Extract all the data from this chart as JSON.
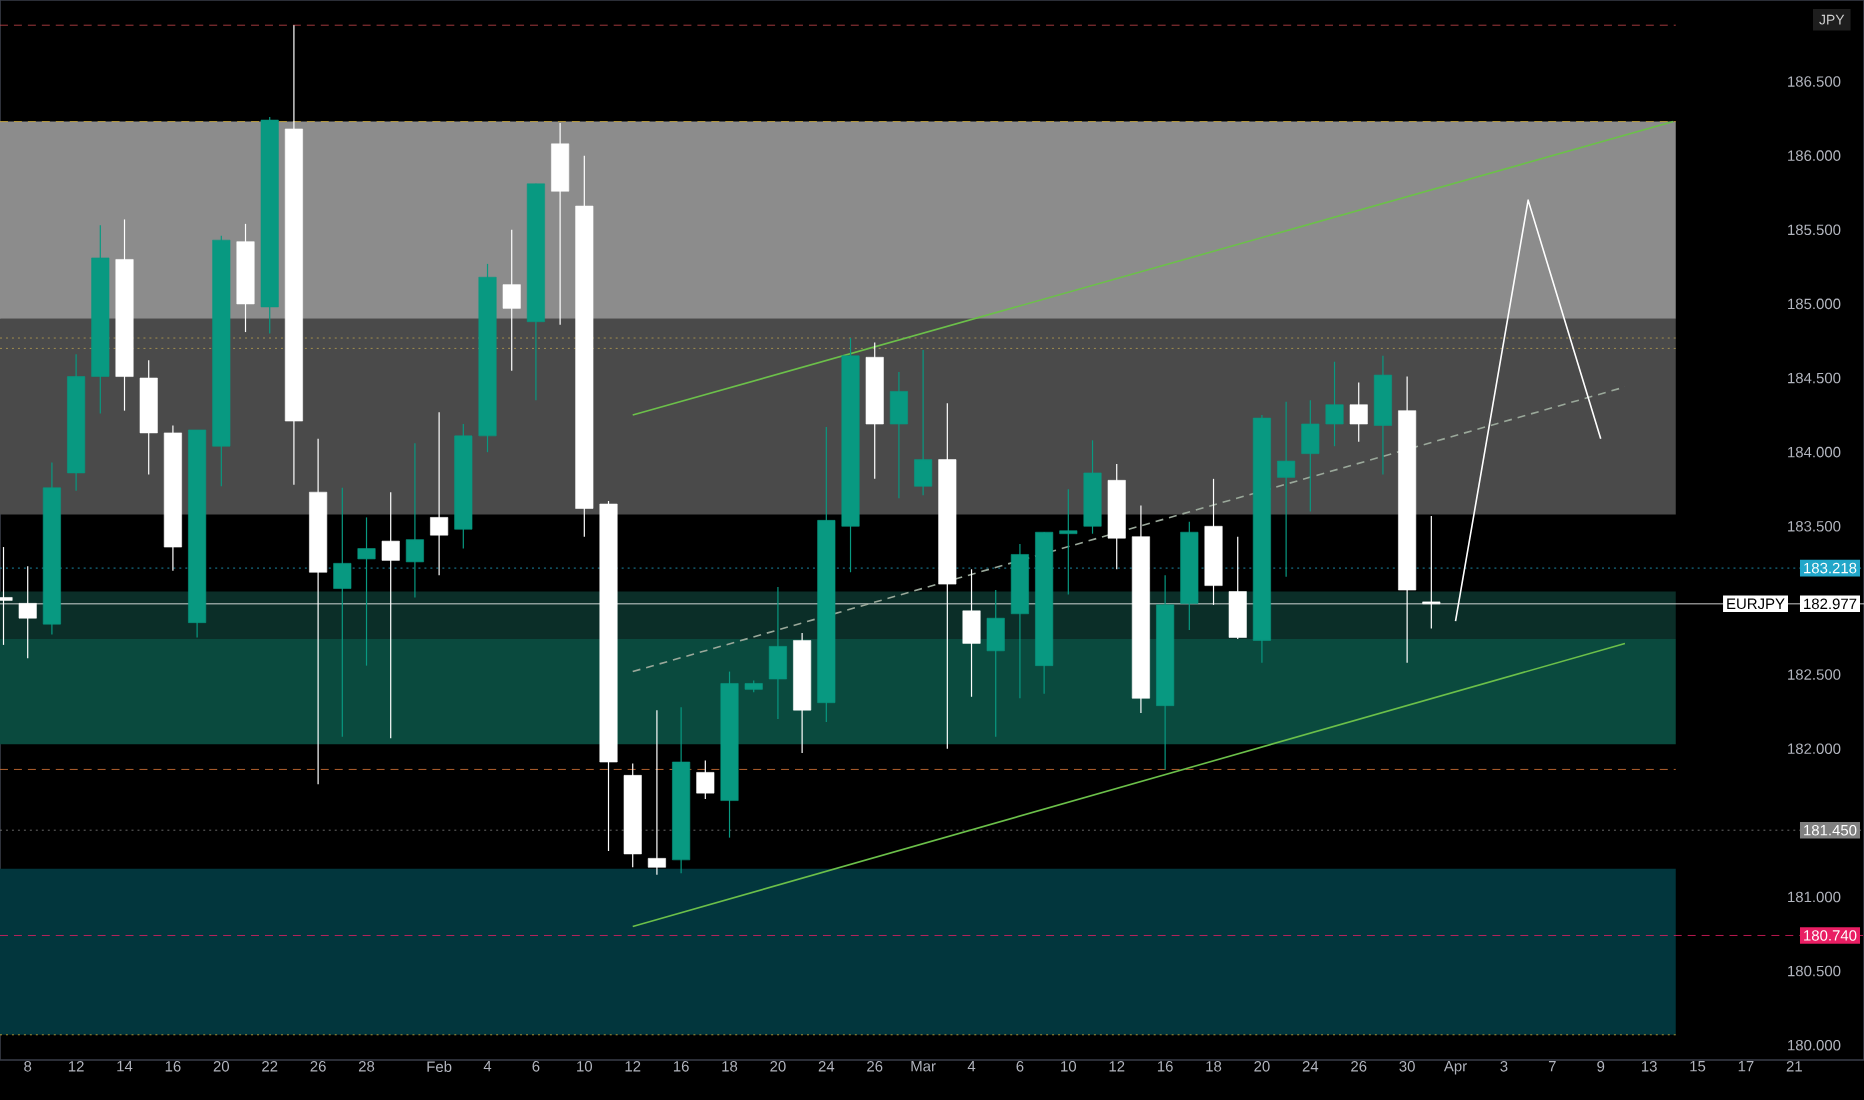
{
  "chart_data": {
    "type": "candlestick",
    "ylabel": "JPY",
    "categories": [
      null,
      "8",
      null,
      "12",
      null,
      "14",
      null,
      "16",
      null,
      "20",
      null,
      "22",
      null,
      "26",
      null,
      "28",
      null,
      null,
      "Feb",
      null,
      "4",
      null,
      "6",
      null,
      "10",
      null,
      "12",
      null,
      "16",
      null,
      "18",
      null,
      "20",
      null,
      "24",
      null,
      "26",
      null,
      "Mar",
      null,
      "4",
      null,
      "6",
      null,
      "10",
      null,
      "12",
      null,
      "16",
      null,
      "18",
      null,
      "20",
      null,
      "24",
      null,
      "26",
      null,
      "30",
      null,
      "Apr",
      null,
      "3",
      null,
      "7",
      null,
      "9",
      null,
      "13",
      null,
      "15",
      null,
      "17",
      null,
      "21"
    ],
    "ohlc": [
      [
        183.02,
        183.36,
        182.7,
        183.0
      ],
      [
        182.98,
        183.23,
        182.61,
        182.88
      ],
      [
        182.84,
        183.93,
        182.77,
        183.76
      ],
      [
        183.86,
        184.66,
        183.74,
        184.51
      ],
      [
        184.51,
        185.53,
        184.26,
        185.31
      ],
      [
        185.3,
        185.57,
        184.28,
        184.51
      ],
      [
        184.5,
        184.62,
        183.85,
        184.13
      ],
      [
        184.13,
        184.18,
        183.2,
        183.36
      ],
      [
        182.85,
        184.15,
        182.75,
        184.15
      ],
      [
        184.04,
        185.46,
        183.77,
        185.43
      ],
      [
        185.42,
        185.54,
        184.81,
        185.0
      ],
      [
        184.98,
        186.26,
        184.8,
        186.24
      ],
      [
        186.18,
        186.88,
        183.78,
        184.21
      ],
      [
        183.73,
        184.09,
        181.76,
        183.19
      ],
      [
        183.08,
        183.76,
        182.08,
        183.25
      ],
      [
        183.28,
        183.56,
        182.56,
        183.35
      ],
      [
        183.4,
        183.73,
        182.07,
        183.27
      ],
      [
        183.26,
        184.06,
        183.02,
        183.41
      ],
      [
        183.56,
        184.27,
        183.17,
        183.44
      ],
      [
        183.48,
        184.19,
        183.35,
        184.11
      ],
      [
        184.11,
        185.27,
        184.0,
        185.18
      ],
      [
        185.13,
        185.5,
        184.55,
        184.97
      ],
      [
        184.88,
        185.81,
        184.35,
        185.81
      ],
      [
        186.08,
        186.22,
        184.86,
        185.76
      ],
      [
        185.66,
        186.0,
        183.43,
        183.62
      ],
      [
        183.65,
        183.67,
        181.31,
        181.91
      ],
      [
        181.82,
        181.9,
        181.2,
        181.29
      ],
      [
        181.26,
        182.26,
        181.15,
        181.2
      ],
      [
        181.25,
        182.28,
        181.16,
        181.91
      ],
      [
        181.84,
        181.92,
        181.66,
        181.7
      ],
      [
        181.65,
        182.52,
        181.4,
        182.44
      ],
      [
        182.4,
        182.46,
        182.38,
        182.44
      ],
      [
        182.47,
        183.09,
        182.2,
        182.69
      ],
      [
        182.73,
        182.78,
        181.97,
        182.26
      ],
      [
        182.31,
        184.17,
        182.18,
        183.54
      ],
      [
        183.5,
        184.77,
        183.19,
        184.65
      ],
      [
        184.64,
        184.74,
        183.82,
        184.19
      ],
      [
        184.19,
        184.54,
        183.69,
        184.41
      ],
      [
        183.77,
        184.69,
        183.71,
        183.95
      ],
      [
        183.95,
        184.33,
        182.0,
        183.11
      ],
      [
        182.93,
        183.21,
        182.35,
        182.71
      ],
      [
        182.66,
        183.07,
        182.08,
        182.88
      ],
      [
        182.91,
        183.38,
        182.34,
        183.31
      ],
      [
        182.56,
        183.46,
        182.37,
        183.46
      ],
      [
        183.45,
        183.75,
        183.04,
        183.47
      ],
      [
        183.5,
        184.08,
        183.45,
        183.86
      ],
      [
        183.81,
        183.92,
        183.21,
        183.42
      ],
      [
        183.43,
        183.64,
        182.24,
        182.34
      ],
      [
        182.29,
        183.17,
        181.86,
        182.97
      ],
      [
        182.98,
        183.53,
        182.8,
        183.46
      ],
      [
        183.5,
        183.82,
        182.97,
        183.1
      ],
      [
        183.06,
        183.43,
        182.74,
        182.75
      ],
      [
        182.73,
        184.25,
        182.58,
        184.23
      ],
      [
        183.83,
        184.34,
        183.16,
        183.94
      ],
      [
        183.99,
        184.35,
        183.6,
        184.19
      ],
      [
        184.19,
        184.61,
        184.04,
        184.32
      ],
      [
        184.32,
        184.47,
        184.07,
        184.19
      ],
      [
        184.18,
        184.65,
        183.85,
        184.52
      ],
      [
        184.28,
        184.51,
        182.58,
        183.07
      ],
      [
        182.99,
        183.57,
        182.81,
        182.977
      ],
      null,
      null,
      null,
      null,
      null,
      null,
      null,
      null,
      null,
      null,
      null,
      null,
      null,
      null,
      null
    ],
    "colors": [
      "#ffffff",
      "#ffffff",
      "#089981",
      "#089981",
      "#089981",
      "#ffffff",
      "#ffffff",
      "#ffffff",
      "#089981",
      "#089981",
      "#ffffff",
      "#089981",
      "#ffffff",
      "#ffffff",
      "#089981",
      "#089981",
      "#ffffff",
      "#089981",
      "#ffffff",
      "#089981",
      "#089981",
      "#ffffff",
      "#089981",
      "#ffffff",
      "#ffffff",
      "#ffffff",
      "#ffffff",
      "#ffffff",
      "#089981",
      "#ffffff",
      "#089981",
      "#089981",
      "#089981",
      "#ffffff",
      "#089981",
      "#089981",
      "#ffffff",
      "#089981",
      "#089981",
      "#ffffff",
      "#ffffff",
      "#089981",
      "#089981",
      "#089981",
      "#089981",
      "#089981",
      "#ffffff",
      "#ffffff",
      "#089981",
      "#089981",
      "#ffffff",
      "#ffffff",
      "#089981",
      "#089981",
      "#089981",
      "#089981",
      "#ffffff",
      "#089981",
      "#ffffff",
      "#ffffff",
      null,
      null,
      null,
      null,
      null,
      null,
      null,
      null,
      null,
      null,
      null,
      null,
      null,
      null,
      null
    ],
    "series": [
      {
        "type": "line",
        "color": "#6cc04a",
        "line_style": "solid",
        "values": [
          null,
          null,
          null,
          null,
          null,
          null,
          null,
          null,
          null,
          null,
          null,
          null,
          null,
          null,
          null,
          null,
          null,
          null,
          null,
          null,
          null,
          null,
          null,
          null,
          null,
          null,
          184.25,
          null,
          null,
          null,
          null,
          null,
          null,
          null,
          null,
          null,
          null,
          null,
          null,
          null,
          null,
          null,
          null,
          null,
          null,
          null,
          null,
          null,
          null,
          null,
          null,
          null,
          null,
          null,
          null,
          null,
          null,
          null,
          null,
          null,
          null,
          null,
          null,
          null,
          null,
          null,
          null,
          null,
          null,
          186.23,
          null,
          null,
          null,
          null,
          null
        ]
      },
      {
        "type": "line",
        "color": "#6cc04a",
        "line_style": "solid",
        "values": [
          null,
          null,
          null,
          null,
          null,
          null,
          null,
          null,
          null,
          null,
          null,
          null,
          null,
          null,
          null,
          null,
          null,
          null,
          null,
          null,
          null,
          null,
          null,
          null,
          null,
          null,
          180.8,
          null,
          null,
          null,
          null,
          null,
          null,
          null,
          null,
          null,
          null,
          null,
          null,
          null,
          null,
          null,
          null,
          null,
          null,
          null,
          null,
          null,
          null,
          null,
          null,
          null,
          null,
          null,
          null,
          null,
          null,
          null,
          null,
          null,
          null,
          null,
          null,
          null,
          null,
          null,
          null,
          182.71,
          null,
          null,
          null,
          null,
          null,
          null,
          null
        ]
      },
      {
        "type": "line",
        "color": "#9aa89a",
        "line_style": "dashed",
        "values": [
          null,
          null,
          null,
          null,
          null,
          null,
          null,
          null,
          null,
          null,
          null,
          null,
          null,
          null,
          null,
          null,
          null,
          null,
          null,
          null,
          null,
          null,
          null,
          null,
          null,
          null,
          182.52,
          null,
          null,
          null,
          null,
          null,
          null,
          null,
          null,
          null,
          null,
          null,
          null,
          null,
          null,
          null,
          null,
          null,
          null,
          null,
          null,
          null,
          null,
          null,
          null,
          null,
          null,
          null,
          null,
          null,
          null,
          null,
          null,
          null,
          null,
          null,
          null,
          null,
          null,
          null,
          null,
          184.44,
          null,
          null,
          null,
          null,
          null,
          null,
          null
        ]
      },
      {
        "type": "line",
        "color": "#ffffff",
        "line_style": "solid",
        "values": [
          null,
          null,
          null,
          null,
          null,
          null,
          null,
          null,
          null,
          null,
          null,
          null,
          null,
          null,
          null,
          null,
          null,
          null,
          null,
          null,
          null,
          null,
          null,
          null,
          null,
          null,
          null,
          null,
          null,
          null,
          null,
          null,
          null,
          null,
          null,
          null,
          null,
          null,
          null,
          null,
          null,
          null,
          null,
          null,
          null,
          null,
          null,
          null,
          null,
          null,
          null,
          null,
          null,
          null,
          null,
          null,
          null,
          null,
          null,
          null,
          182.86,
          null,
          null,
          185.7,
          null,
          null,
          184.09,
          null,
          null,
          null,
          null,
          null,
          null,
          null,
          null
        ]
      }
    ],
    "bands": [
      {
        "axis": "y",
        "from": 180.07,
        "to": 181.19,
        "color": "#02363d"
      },
      {
        "axis": "y",
        "from": 182.03,
        "to": 182.74,
        "color": "#0a4a3e"
      },
      {
        "axis": "y",
        "from": 182.74,
        "to": 183.06,
        "color": "#0b2e28"
      },
      {
        "axis": "y",
        "from": 183.58,
        "to": 184.9,
        "color": "#4a4a4a"
      },
      {
        "axis": "y",
        "from": 184.9,
        "to": 186.23,
        "color": "#8c8c8c"
      }
    ],
    "ref_lines": [
      {
        "axis": "y",
        "value": 186.88,
        "color": "#c8464b",
        "line_style": "dashed"
      },
      {
        "axis": "y",
        "value": 186.23,
        "color": "#d4b03a",
        "line_style": "dashed"
      },
      {
        "axis": "y",
        "value": 184.77,
        "color": "#b8a050",
        "line_style": "dotted"
      },
      {
        "axis": "y",
        "value": 184.7,
        "color": "#b8a050",
        "line_style": "dotted"
      },
      {
        "axis": "y",
        "value": 181.86,
        "color": "#e07a3a",
        "line_style": "dashed"
      },
      {
        "axis": "y",
        "value": 180.07,
        "color": "#d4b03a",
        "line_style": "dotted"
      },
      {
        "axis": "y",
        "value": 183.218,
        "label": "183.218",
        "color": "#22a7c9",
        "line_style": "dotted"
      },
      {
        "axis": "y",
        "value": 182.977,
        "label": "182.977",
        "color": "#ffffff",
        "line_style": "solid"
      },
      {
        "axis": "y",
        "value": 181.45,
        "label": "181.450",
        "color": "#808080",
        "line_style": "dotted"
      },
      {
        "axis": "y",
        "value": 180.74,
        "label": "180.740",
        "color": "#e91e63",
        "line_style": "dashed"
      }
    ],
    "annotations": [
      "EURJPY"
    ],
    "ylim": [
      179.9,
      187.05
    ],
    "yticks": [
      {
        "value": 180,
        "label": "180.000"
      },
      {
        "value": 180.5,
        "label": "180.500"
      },
      {
        "value": 181,
        "label": "181.000"
      },
      {
        "value": 182,
        "label": "182.000"
      },
      {
        "value": 182.5,
        "label": "182.500"
      },
      {
        "value": 183.5,
        "label": "183.500"
      },
      {
        "value": 184,
        "label": "184.000"
      },
      {
        "value": 184.5,
        "label": "184.500"
      },
      {
        "value": 185,
        "label": "185.000"
      },
      {
        "value": 185.5,
        "label": "185.500"
      },
      {
        "value": 186,
        "label": "186.000"
      },
      {
        "value": 186.5,
        "label": "186.500"
      }
    ]
  }
}
